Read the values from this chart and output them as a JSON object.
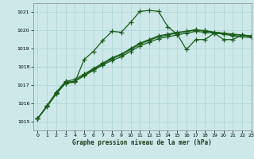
{
  "title": "Graphe pression niveau de la mer (hPa)",
  "xlim": [
    -0.5,
    23
  ],
  "ylim": [
    1014.5,
    1021.5
  ],
  "yticks": [
    1015,
    1016,
    1017,
    1018,
    1019,
    1020,
    1021
  ],
  "xticks": [
    0,
    1,
    2,
    3,
    4,
    5,
    6,
    7,
    8,
    9,
    10,
    11,
    12,
    13,
    14,
    15,
    16,
    17,
    18,
    19,
    20,
    21,
    22,
    23
  ],
  "bg_color": "#cce8e8",
  "grid_color": "#aad4d4",
  "line_color": "#1a5c1a",
  "line_width": 0.9,
  "marker": "+",
  "markersize": 4,
  "markeredgewidth": 0.9,
  "series": [
    [
      1015.15,
      1015.8,
      1016.5,
      1017.1,
      1017.15,
      1018.4,
      1018.85,
      1019.45,
      1019.95,
      1019.9,
      1020.45,
      1021.05,
      1021.1,
      1021.05,
      1020.2,
      1019.8,
      1018.95,
      1019.5,
      1019.5,
      1019.85,
      1019.5,
      1019.5,
      1019.75,
      1019.7
    ],
    [
      1015.15,
      1015.85,
      1016.55,
      1017.15,
      1017.2,
      1017.55,
      1017.85,
      1018.15,
      1018.45,
      1018.65,
      1018.95,
      1019.25,
      1019.45,
      1019.65,
      1019.75,
      1019.85,
      1019.95,
      1020.05,
      1019.95,
      1019.9,
      1019.85,
      1019.75,
      1019.75,
      1019.65
    ],
    [
      1015.15,
      1015.85,
      1016.55,
      1017.1,
      1017.2,
      1017.5,
      1017.8,
      1018.1,
      1018.35,
      1018.55,
      1018.85,
      1019.15,
      1019.35,
      1019.55,
      1019.65,
      1019.75,
      1019.85,
      1019.95,
      1019.9,
      1019.85,
      1019.8,
      1019.7,
      1019.65,
      1019.6
    ],
    [
      1015.15,
      1015.85,
      1016.6,
      1017.2,
      1017.3,
      1017.6,
      1017.9,
      1018.2,
      1018.5,
      1018.7,
      1019.0,
      1019.3,
      1019.5,
      1019.7,
      1019.8,
      1019.9,
      1019.95,
      1020.0,
      1020.0,
      1019.9,
      1019.85,
      1019.8,
      1019.75,
      1019.7
    ]
  ]
}
